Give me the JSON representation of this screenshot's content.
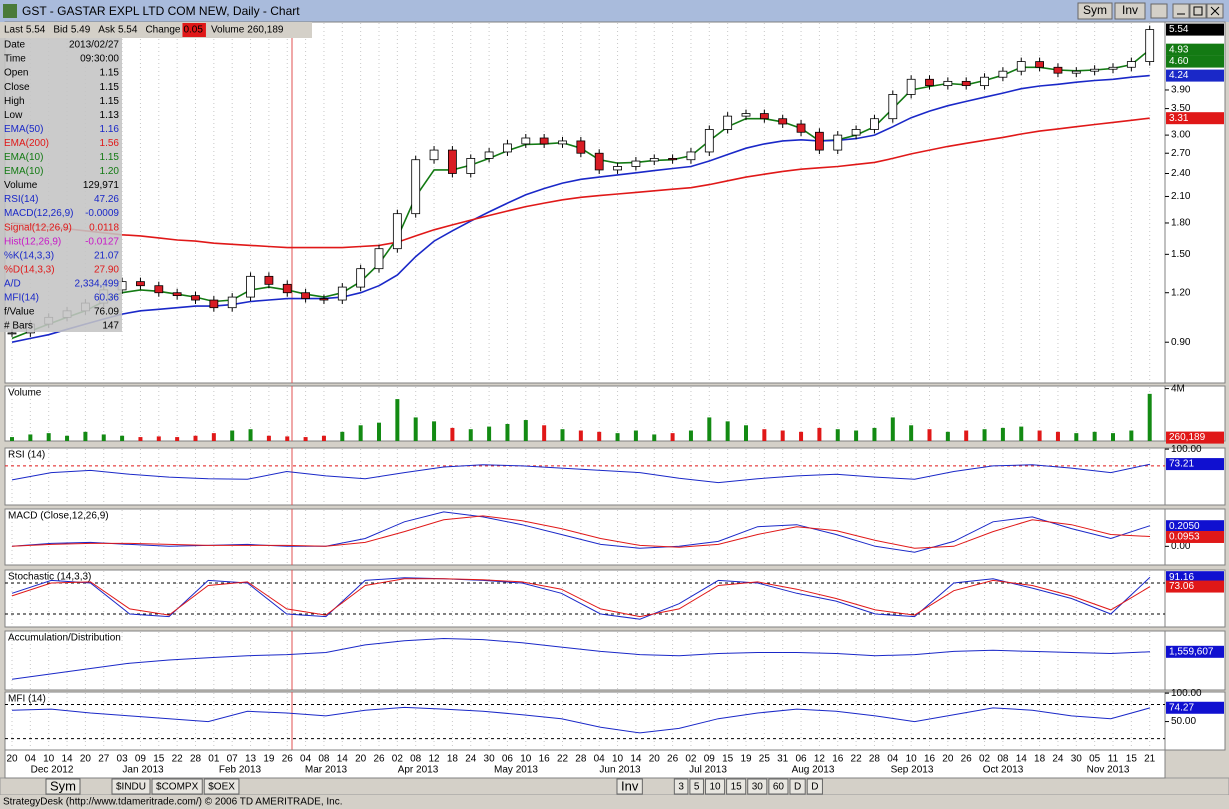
{
  "window": {
    "title": "GST - GASTAR EXPL LTD COM NEW, Daily - Chart",
    "buttons": [
      "Sym",
      "Inv"
    ]
  },
  "quote_bar": [
    {
      "label": "Last",
      "value": "5.54"
    },
    {
      "label": "Bid",
      "value": "5.49"
    },
    {
      "label": "Ask",
      "value": "5.54"
    },
    {
      "label": "Change",
      "value": "0.05"
    },
    {
      "label": "Volume",
      "value": "260,189"
    }
  ],
  "info_panel": [
    {
      "label": "Date",
      "value": "2013/02/27",
      "color": "#000000"
    },
    {
      "label": "Time",
      "value": "09:30:00",
      "color": "#000000"
    },
    {
      "label": "Open",
      "value": "1.15",
      "color": "#000000"
    },
    {
      "label": "Close",
      "value": "1.15",
      "color": "#000000"
    },
    {
      "label": "High",
      "value": "1.15",
      "color": "#000000"
    },
    {
      "label": "Low",
      "value": "1.13",
      "color": "#000000"
    },
    {
      "label": "EMA(50)",
      "value": "1.16",
      "color": "#1a28c8"
    },
    {
      "label": "EMA(200)",
      "value": "1.56",
      "color": "#e01818"
    },
    {
      "label": "EMA(10)",
      "value": "1.15",
      "color": "#137a13"
    },
    {
      "label": "EMA(10)",
      "value": "1.20",
      "color": "#137a13"
    },
    {
      "label": "Volume",
      "value": "129,971",
      "color": "#000000"
    },
    {
      "label": "RSI(14)",
      "value": "47.26",
      "color": "#1a28c8"
    },
    {
      "label": "MACD(12,26,9)",
      "value": "-0.0009",
      "color": "#1a28c8"
    },
    {
      "label": "Signal(12,26,9)",
      "value": "0.0118",
      "color": "#e01818"
    },
    {
      "label": "Hist(12,26,9)",
      "value": "-0.0127",
      "color": "#c818c8"
    },
    {
      "label": "%K(14,3,3)",
      "value": "21.07",
      "color": "#1a28c8"
    },
    {
      "label": "%D(14,3,3)",
      "value": "27.90",
      "color": "#e01818"
    },
    {
      "label": "A/D",
      "value": "2,334,499",
      "color": "#1a28c8"
    },
    {
      "label": "MFI(14)",
      "value": "60.36",
      "color": "#1a28c8"
    },
    {
      "label": "f/Value",
      "value": "76.09",
      "color": "#000000"
    },
    {
      "label": "# Bars",
      "value": "147",
      "color": "#000000"
    }
  ],
  "months": [
    "Dec 2012",
    "Jan 2013",
    "Feb 2013",
    "Mar 2013",
    "Apr 2013",
    "May 2013",
    "Jun 2013",
    "Jul 2013",
    "Aug 2013",
    "Sep 2013",
    "Oct 2013",
    "Nov 2013"
  ],
  "chart_data": [
    {
      "type": "candlestick",
      "log_scale": true,
      "ylim": [
        0.71,
        5.79
      ],
      "yticks": [
        {
          "value": 0.9,
          "label": "0.90"
        },
        {
          "value": 1.2,
          "label": "1.20"
        },
        {
          "value": 1.5,
          "label": "1.50"
        },
        {
          "value": 1.8,
          "label": "1.80"
        },
        {
          "value": 2.1,
          "label": "2.10"
        },
        {
          "value": 2.4,
          "label": "2.40"
        },
        {
          "value": 2.7,
          "label": "2.70"
        },
        {
          "value": 3.0,
          "label": "3.00"
        },
        {
          "value": 3.5,
          "label": "3.50"
        },
        {
          "value": 3.9,
          "label": "3.90"
        }
      ],
      "categories": [
        "20",
        "04",
        "10",
        "14",
        "20",
        "27",
        "03",
        "09",
        "15",
        "22",
        "28",
        "01",
        "07",
        "13",
        "19",
        "26",
        "04",
        "08",
        "14",
        "20",
        "26",
        "02",
        "08",
        "12",
        "18",
        "24",
        "30",
        "06",
        "10",
        "16",
        "22",
        "28",
        "04",
        "10",
        "14",
        "20",
        "26",
        "02",
        "09",
        "15",
        "19",
        "25",
        "31",
        "06",
        "12",
        "16",
        "22",
        "28",
        "04",
        "10",
        "16",
        "20",
        "26",
        "02",
        "08",
        "14",
        "18",
        "24",
        "30",
        "05",
        "11",
        "15",
        "21"
      ],
      "values": [
        0.95,
        1.0,
        1.04,
        1.08,
        1.13,
        1.22,
        1.28,
        1.25,
        1.2,
        1.18,
        1.15,
        1.1,
        1.17,
        1.32,
        1.26,
        1.2,
        1.16,
        1.15,
        1.24,
        1.38,
        1.55,
        1.9,
        2.6,
        2.75,
        2.4,
        2.62,
        2.72,
        2.85,
        2.95,
        2.85,
        2.9,
        2.7,
        2.45,
        2.5,
        2.58,
        2.62,
        2.6,
        2.72,
        3.1,
        3.35,
        3.4,
        3.3,
        3.2,
        3.05,
        2.75,
        3.0,
        3.1,
        3.3,
        3.8,
        4.15,
        4.0,
        4.1,
        4.0,
        4.2,
        4.35,
        4.6,
        4.45,
        4.3,
        4.35,
        4.4,
        4.45,
        4.6,
        5.54
      ],
      "up_color": "#ffffff",
      "down_color": "#d81c24",
      "series": [
        {
          "color": "#137a13",
          "values": [
            0.92,
            0.96,
            1.0,
            1.04,
            1.08,
            1.14,
            1.2,
            1.22,
            1.21,
            1.19,
            1.17,
            1.14,
            1.15,
            1.22,
            1.24,
            1.22,
            1.19,
            1.17,
            1.2,
            1.28,
            1.42,
            1.65,
            2.1,
            2.45,
            2.45,
            2.52,
            2.62,
            2.74,
            2.84,
            2.85,
            2.87,
            2.78,
            2.6,
            2.55,
            2.56,
            2.59,
            2.6,
            2.66,
            2.9,
            3.15,
            3.3,
            3.3,
            3.24,
            3.12,
            2.9,
            2.92,
            3.0,
            3.15,
            3.5,
            3.9,
            3.98,
            4.05,
            4.02,
            4.12,
            4.25,
            4.45,
            4.45,
            4.38,
            4.36,
            4.38,
            4.42,
            4.52,
            4.93
          ]
        },
        {
          "color": "#1a28c8",
          "values": [
            0.9,
            0.92,
            0.94,
            0.97,
            1.0,
            1.03,
            1.06,
            1.08,
            1.09,
            1.1,
            1.11,
            1.11,
            1.12,
            1.14,
            1.15,
            1.16,
            1.16,
            1.16,
            1.17,
            1.2,
            1.25,
            1.33,
            1.48,
            1.62,
            1.72,
            1.82,
            1.92,
            2.02,
            2.12,
            2.2,
            2.27,
            2.32,
            2.35,
            2.38,
            2.41,
            2.44,
            2.47,
            2.5,
            2.58,
            2.68,
            2.78,
            2.85,
            2.9,
            2.92,
            2.9,
            2.91,
            2.94,
            3.0,
            3.15,
            3.32,
            3.45,
            3.56,
            3.65,
            3.74,
            3.83,
            3.93,
            3.99,
            4.03,
            4.08,
            4.12,
            4.15,
            4.2,
            4.24
          ]
        },
        {
          "color": "#e01818",
          "values": [
            1.8,
            1.78,
            1.76,
            1.74,
            1.72,
            1.7,
            1.68,
            1.67,
            1.65,
            1.63,
            1.62,
            1.6,
            1.59,
            1.58,
            1.57,
            1.56,
            1.56,
            1.56,
            1.56,
            1.57,
            1.58,
            1.61,
            1.67,
            1.73,
            1.78,
            1.83,
            1.88,
            1.93,
            1.98,
            2.02,
            2.06,
            2.09,
            2.11,
            2.13,
            2.15,
            2.17,
            2.19,
            2.21,
            2.25,
            2.3,
            2.35,
            2.39,
            2.43,
            2.46,
            2.48,
            2.5,
            2.53,
            2.56,
            2.62,
            2.69,
            2.75,
            2.81,
            2.86,
            2.91,
            2.96,
            3.02,
            3.07,
            3.11,
            3.15,
            3.19,
            3.23,
            3.27,
            3.31
          ]
        }
      ],
      "value_boxes": [
        {
          "value": 5.54,
          "label": "5.54",
          "color": "#000000"
        },
        {
          "value": 4.93,
          "label": "4.93",
          "color": "#137a13"
        },
        {
          "value": 4.6,
          "label": "4.60",
          "color": "#137a13"
        },
        {
          "value": 4.24,
          "label": "4.24",
          "color": "#1a28c8"
        },
        {
          "value": 3.31,
          "label": "3.31",
          "color": "#e01818"
        }
      ]
    },
    {
      "type": "bar",
      "title": "Volume",
      "ylim": [
        0,
        4200000
      ],
      "yticks": [
        {
          "value": 4000000,
          "label": "4M"
        }
      ],
      "values": [
        300000,
        500000,
        600000,
        400000,
        700000,
        500000,
        400000,
        300000,
        350000,
        300000,
        400000,
        600000,
        800000,
        900000,
        400000,
        350000,
        300000,
        400000,
        700000,
        1200000,
        1400000,
        3200000,
        1800000,
        1500000,
        1000000,
        900000,
        1100000,
        1300000,
        1600000,
        1200000,
        900000,
        800000,
        700000,
        600000,
        800000,
        500000,
        600000,
        800000,
        1800000,
        1500000,
        1200000,
        900000,
        800000,
        700000,
        1000000,
        900000,
        800000,
        1000000,
        1800000,
        1200000,
        900000,
        700000,
        800000,
        900000,
        1000000,
        1100000,
        800000,
        700000,
        600000,
        700000,
        600000,
        800000,
        3600000
      ],
      "up_color": "#138a13",
      "down_color": "#e01818",
      "value_boxes": [
        {
          "value": 260189,
          "label": "260,189",
          "color": "#e01818"
        }
      ]
    },
    {
      "type": "line",
      "title": "RSI (14)",
      "ylim": [
        0,
        102
      ],
      "yticks": [
        {
          "value": 100,
          "label": "100.00"
        }
      ],
      "reference_lines": [
        {
          "value": 70,
          "color": "#e01818"
        }
      ],
      "series": [
        {
          "color": "#1a28c8",
          "values": [
            45,
            58,
            62,
            55,
            50,
            47,
            46,
            60,
            52,
            47,
            58,
            68,
            72,
            70,
            66,
            62,
            58,
            48,
            40,
            47,
            52,
            55,
            50,
            46,
            60,
            70,
            72,
            66,
            58,
            73
          ]
        }
      ],
      "value_boxes": [
        {
          "value": 73.21,
          "label": "73.21",
          "color": "#1010d0"
        }
      ]
    },
    {
      "type": "line",
      "title": "MACD (Close,12,26,9)",
      "ylim": [
        -0.19,
        0.38
      ],
      "yticks": [
        {
          "value": 0,
          "label": "0.00"
        }
      ],
      "series": [
        {
          "color": "#1a28c8",
          "values": [
            0.0,
            0.03,
            0.04,
            0.02,
            0.0,
            0.01,
            0.02,
            0.0,
            0.0,
            0.08,
            0.25,
            0.35,
            0.3,
            0.22,
            0.12,
            0.02,
            -0.02,
            0.0,
            0.05,
            0.2,
            0.22,
            0.12,
            0.0,
            -0.06,
            0.05,
            0.25,
            0.3,
            0.18,
            0.08,
            0.21
          ]
        },
        {
          "color": "#e01818",
          "values": [
            0.0,
            0.02,
            0.03,
            0.03,
            0.02,
            0.01,
            0.01,
            0.01,
            0.0,
            0.04,
            0.15,
            0.27,
            0.31,
            0.26,
            0.18,
            0.08,
            0.01,
            -0.01,
            0.02,
            0.12,
            0.2,
            0.16,
            0.06,
            -0.02,
            0.0,
            0.15,
            0.27,
            0.22,
            0.12,
            0.1
          ]
        }
      ],
      "value_boxes": [
        {
          "value": 0.205,
          "label": "0.2050",
          "color": "#1010d0"
        },
        {
          "value": 0.0953,
          "label": "0.0953",
          "color": "#e01818"
        }
      ]
    },
    {
      "type": "line",
      "title": "Stochastic (14,3,3)",
      "ylim": [
        -5,
        105
      ],
      "reference_lines": [
        {
          "value": 80,
          "color": "#000000"
        },
        {
          "value": 20,
          "color": "#000000"
        }
      ],
      "series": [
        {
          "color": "#1a28c8",
          "values": [
            60,
            85,
            80,
            20,
            15,
            85,
            80,
            20,
            15,
            85,
            90,
            88,
            85,
            80,
            60,
            20,
            10,
            40,
            85,
            80,
            60,
            45,
            20,
            15,
            80,
            88,
            70,
            50,
            20,
            91
          ]
        },
        {
          "color": "#e01818",
          "values": [
            55,
            80,
            82,
            30,
            18,
            75,
            82,
            30,
            18,
            75,
            88,
            88,
            86,
            82,
            68,
            30,
            15,
            30,
            75,
            82,
            68,
            50,
            28,
            18,
            65,
            85,
            75,
            55,
            28,
            73
          ]
        }
      ],
      "value_boxes": [
        {
          "value": 91.16,
          "label": "91.16",
          "color": "#1010d0"
        },
        {
          "value": 73.06,
          "label": "73.06",
          "color": "#e01818"
        }
      ]
    },
    {
      "type": "line",
      "title": "Accumulation/Distribution",
      "ylim": [
        -2000000,
        3500000
      ],
      "series": [
        {
          "color": "#1a28c8",
          "values": [
            -1000000,
            -500000,
            0,
            500000,
            800000,
            1000000,
            1200000,
            1300000,
            1500000,
            2200000,
            2600000,
            2800000,
            2700000,
            2400000,
            2000000,
            1600000,
            1300000,
            1200000,
            1400000,
            1500000,
            1500000,
            1400000,
            1200000,
            1300000,
            1600000,
            1700000,
            1600000,
            1500000,
            1400000,
            1559607
          ]
        }
      ],
      "value_boxes": [
        {
          "value": 1559607,
          "label": "1,559,607",
          "color": "#1010d0"
        }
      ]
    },
    {
      "type": "line",
      "title": "MFI (14)",
      "ylim": [
        0,
        102
      ],
      "yticks": [
        {
          "value": 100,
          "label": "100.00"
        },
        {
          "value": 50,
          "label": "50.00"
        }
      ],
      "reference_lines": [
        {
          "value": 80,
          "color": "#000000"
        },
        {
          "value": 20,
          "color": "#000000"
        }
      ],
      "series": [
        {
          "color": "#1a28c8",
          "values": [
            70,
            72,
            65,
            60,
            55,
            50,
            68,
            65,
            60,
            70,
            75,
            72,
            68,
            62,
            55,
            40,
            30,
            38,
            55,
            65,
            72,
            68,
            60,
            50,
            62,
            74,
            70,
            60,
            55,
            74
          ]
        }
      ],
      "value_boxes": [
        {
          "value": 74.27,
          "label": "74.27",
          "color": "#1010d0"
        }
      ]
    }
  ],
  "tabs": {
    "left": [
      "Sym",
      "$INDU",
      "$COMPX",
      "$OEX"
    ],
    "right": [
      "Inv",
      "3",
      "5",
      "10",
      "15",
      "30",
      "60",
      "D",
      "D"
    ]
  },
  "status": "StrategyDesk (http://www.tdameritrade.com/) © 2006 TD AMERITRADE, Inc."
}
